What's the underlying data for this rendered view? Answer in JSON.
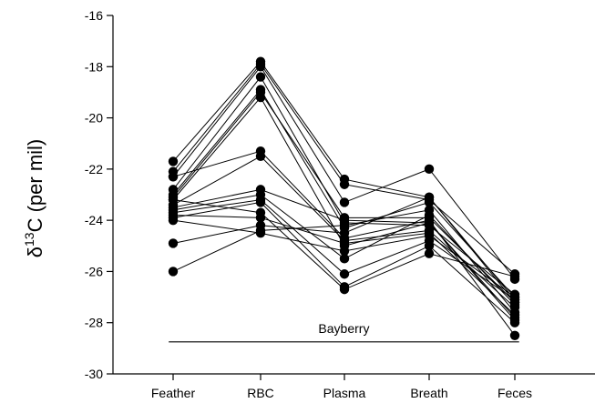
{
  "chart_data": {
    "type": "line",
    "categories": [
      "Feather",
      "RBC",
      "Plasma",
      "Breath",
      "Feces"
    ],
    "ylabel_main": "δ",
    "ylabel_sup": "13",
    "ylabel_rest": "C (per mil)",
    "ylim": [
      -30,
      -16
    ],
    "yticks": [
      -16,
      -18,
      -20,
      -22,
      -24,
      -26,
      -28,
      -30
    ],
    "grid": false,
    "annotation": {
      "label": "Bayberry",
      "y": -28.75,
      "x_range": [
        -0.05,
        4.05
      ]
    },
    "marker_color": "#000000",
    "series": [
      {
        "values": [
          -21.7,
          -17.8,
          -22.4,
          -23.1,
          -27.1
        ]
      },
      {
        "values": [
          -22.1,
          -17.9,
          -22.6,
          -23.2,
          -26.1
        ]
      },
      {
        "values": [
          -22.3,
          -18.0,
          -23.3,
          -22.0,
          -26.3
        ]
      },
      {
        "values": [
          -22.8,
          -18.4,
          -24.1,
          -24.2,
          -26.9
        ]
      },
      {
        "values": [
          -23.0,
          -18.9,
          -24.3,
          -23.3,
          -27.0
        ]
      },
      {
        "values": [
          -23.1,
          -19.0,
          -23.9,
          -23.9,
          -27.2
        ]
      },
      {
        "values": [
          -23.2,
          -19.2,
          -25.0,
          -24.1,
          -27.8
        ]
      },
      {
        "values": [
          -22.3,
          -21.3,
          -24.7,
          -24.0,
          -28.5
        ]
      },
      {
        "values": [
          -23.4,
          -21.5,
          -24.8,
          -24.4,
          -27.4
        ]
      },
      {
        "values": [
          -23.5,
          -22.8,
          -24.0,
          -24.1,
          -27.9
        ]
      },
      {
        "values": [
          -23.6,
          -23.0,
          -25.5,
          -23.8,
          -27.3
        ]
      },
      {
        "values": [
          -23.7,
          -23.2,
          -26.1,
          -24.8,
          -27.1
        ]
      },
      {
        "values": [
          -23.9,
          -23.3,
          -26.6,
          -25.0,
          -28.0
        ]
      },
      {
        "values": [
          -23.2,
          -23.7,
          -26.7,
          -25.3,
          -26.2
        ]
      },
      {
        "values": [
          -23.8,
          -23.9,
          -24.9,
          -24.5,
          -27.7
        ]
      },
      {
        "values": [
          -24.9,
          -24.2,
          -24.5,
          -23.1,
          -27.2
        ]
      },
      {
        "values": [
          -26.0,
          -24.4,
          -24.2,
          -23.6,
          -27.6
        ]
      },
      {
        "values": [
          -24.0,
          -24.5,
          -25.2,
          -24.6,
          -27.0
        ]
      }
    ]
  }
}
